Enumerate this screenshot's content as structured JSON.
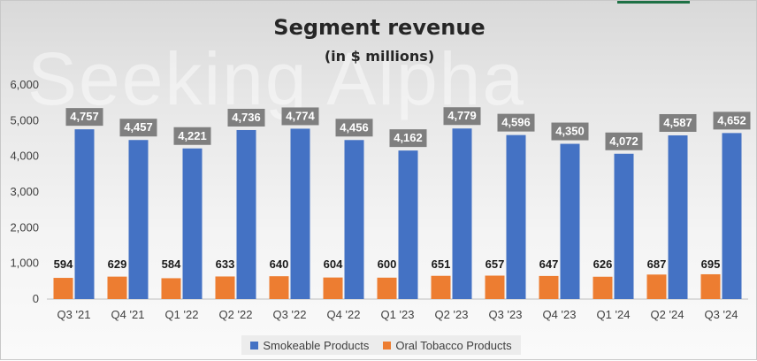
{
  "chart_data": {
    "type": "bar",
    "title": "Segment revenue",
    "subtitle": "(in $ millions)",
    "watermark": "Seeking Alpha",
    "categories": [
      "Q3 '21",
      "Q4 '21",
      "Q1 '22",
      "Q2 '22",
      "Q3 '22",
      "Q4 '22",
      "Q1 '23",
      "Q2 '23",
      "Q3 '23",
      "Q4 '23",
      "Q1 '24",
      "Q2 '24",
      "Q3 '24"
    ],
    "series": [
      {
        "name": "Oral Tobacco Products",
        "color": "#ed7d31",
        "values": [
          594,
          629,
          584,
          633,
          640,
          604,
          600,
          651,
          657,
          647,
          626,
          687,
          695
        ],
        "labels": [
          "594",
          "629",
          "584",
          "633",
          "640",
          "604",
          "600",
          "651",
          "657",
          "647",
          "626",
          "687",
          "695"
        ]
      },
      {
        "name": "Smokeable Products",
        "color": "#4472c4",
        "values": [
          4757,
          4457,
          4221,
          4736,
          4774,
          4456,
          4162,
          4779,
          4596,
          4350,
          4072,
          4587,
          4652
        ],
        "labels": [
          "4,757",
          "4,457",
          "4,221",
          "4,736",
          "4,774",
          "4,456",
          "4,162",
          "4,779",
          "4,596",
          "4,350",
          "4,072",
          "4,587",
          "4,652"
        ]
      }
    ],
    "ylim": [
      0,
      6000
    ],
    "yticks": [
      "0",
      "1,000",
      "2,000",
      "3,000",
      "4,000",
      "5,000",
      "6,000"
    ],
    "legend_order": [
      "Smokeable Products",
      "Oral Tobacco Products"
    ],
    "legend_position": "bottom",
    "grid": false
  }
}
